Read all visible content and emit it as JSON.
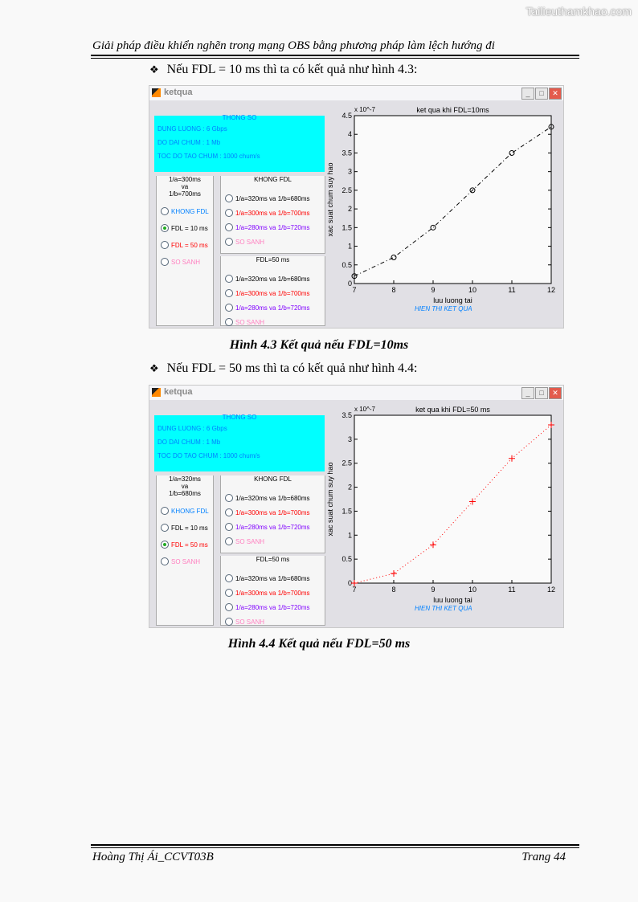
{
  "watermark": "Tailieuthamkhao.com",
  "header": "Giải pháp điều khiển nghẽn trong mạng OBS bằng phương pháp làm lệch hướng đi",
  "bullet_symbol": "❖",
  "bullets": [
    "Nếu FDL = 10 ms thì ta có kết quả như hình 4.3:",
    "Nếu FDL = 50 ms thì ta có kết quả như hình 4.4:"
  ],
  "captions": [
    "Hình 4.3 Kết quả nếu FDL=10ms",
    "Hình 4.4 Kết quả nếu FDL=50 ms"
  ],
  "footer": {
    "left": "Hoàng Thị Ái_CCVT03B",
    "right": "Trang 44"
  },
  "colors": {
    "cyan": "#00ffff",
    "blue": "#0080ff",
    "red": "#ff0000",
    "purple": "#8000ff",
    "pink": "#ff80c0"
  },
  "figures": [
    {
      "window_title": "ketqua",
      "params": {
        "title": "THONG SO",
        "lines": [
          "DUNG LUONG : 6 Gbps",
          "DO DAI CHUM : 1 Mb",
          "TOC DO TAO CHUM : 1000 chum/s"
        ]
      },
      "left_group": {
        "title": [
          "1/a=300ms",
          "va",
          "1/b=700ms"
        ],
        "options": [
          {
            "label": "KHONG FDL",
            "color": "#0080ff",
            "selected": false
          },
          {
            "label": "FDL = 10 ms",
            "color": "#000000",
            "selected": true
          },
          {
            "label": "FDL = 50 ms",
            "color": "#ff0000",
            "selected": false
          },
          {
            "label": "SO SANH",
            "color": "#ff80c0",
            "selected": false
          }
        ]
      },
      "group_khong_fdl": {
        "title": "KHONG FDL",
        "options": [
          {
            "label": "1/a=320ms va 1/b=680ms",
            "color": "#000000"
          },
          {
            "label": "1/a=300ms va 1/b=700ms",
            "color": "#ff0000"
          },
          {
            "label": "1/a=280ms va 1/b=720ms",
            "color": "#8000ff"
          },
          {
            "label": "SO SANH",
            "color": "#ff80c0"
          }
        ]
      },
      "group_fdl50": {
        "title": "FDL=50 ms",
        "options": [
          {
            "label": "1/a=320ms va 1/b=680ms",
            "color": "#000000"
          },
          {
            "label": "1/a=300ms va 1/b=700ms",
            "color": "#ff0000"
          },
          {
            "label": "1/a=280ms va 1/b=720ms",
            "color": "#8000ff"
          },
          {
            "label": "SO SANH",
            "color": "#ff80c0"
          }
        ]
      },
      "result_button": "HIEN THI KET QUA",
      "chart_data": {
        "type": "line",
        "title": "ket qua khi FDL=10ms",
        "xlabel": "luu luong tai",
        "ylabel": "xac suat chum suy hao",
        "y_multiplier": "x 10^-7",
        "xlim": [
          7,
          12
        ],
        "ylim": [
          0,
          4.5
        ],
        "xticks": [
          "7",
          "8",
          "9",
          "10",
          "11",
          "12"
        ],
        "yticks": [
          "0",
          "0.5",
          "1",
          "1.5",
          "2",
          "2.5",
          "3",
          "3.5",
          "4",
          "4.5"
        ],
        "x": [
          7,
          8,
          9,
          10,
          11,
          12
        ],
        "y": [
          0.2,
          0.7,
          1.5,
          2.5,
          3.5,
          4.2
        ],
        "color": "#000000",
        "marker": "circle",
        "line_style": "dash-dot",
        "grid": false
      }
    },
    {
      "window_title": "ketqua",
      "params": {
        "title": "THONG SO",
        "lines": [
          "DUNG LUONG : 6 Gbps",
          "DO DAI CHUM : 1 Mb",
          "TOC DO TAO CHUM : 1000 chum/s"
        ]
      },
      "left_group": {
        "title": [
          "1/a=320ms",
          "va",
          "1/b=680ms"
        ],
        "options": [
          {
            "label": "KHONG FDL",
            "color": "#0080ff",
            "selected": false
          },
          {
            "label": "FDL = 10 ms",
            "color": "#000000",
            "selected": false
          },
          {
            "label": "FDL = 50 ms",
            "color": "#ff0000",
            "selected": true
          },
          {
            "label": "SO SANH",
            "color": "#ff80c0",
            "selected": false
          }
        ]
      },
      "group_khong_fdl": {
        "title": "KHONG FDL",
        "options": [
          {
            "label": "1/a=320ms va 1/b=680ms",
            "color": "#000000"
          },
          {
            "label": "1/a=300ms va 1/b=700ms",
            "color": "#ff0000"
          },
          {
            "label": "1/a=280ms va 1/b=720ms",
            "color": "#8000ff"
          },
          {
            "label": "SO SANH",
            "color": "#ff80c0"
          }
        ]
      },
      "group_fdl50": {
        "title": "FDL=50 ms",
        "options": [
          {
            "label": "1/a=320ms va 1/b=680ms",
            "color": "#000000"
          },
          {
            "label": "1/a=300ms va 1/b=700ms",
            "color": "#ff0000"
          },
          {
            "label": "1/a=280ms va 1/b=720ms",
            "color": "#8000ff"
          },
          {
            "label": "SO SANH",
            "color": "#ff80c0"
          }
        ]
      },
      "result_button": "HIEN THI KET QUA",
      "chart_data": {
        "type": "line",
        "title": "ket qua khi FDL=50 ms",
        "xlabel": "luu luong tai",
        "ylabel": "xac suat chum suy hao",
        "y_multiplier": "x 10^-7",
        "xlim": [
          7,
          12
        ],
        "ylim": [
          0,
          3.5
        ],
        "xticks": [
          "7",
          "8",
          "9",
          "10",
          "11",
          "12"
        ],
        "yticks": [
          "0",
          "0.5",
          "1",
          "1.5",
          "2",
          "2.5",
          "3",
          "3.5"
        ],
        "x": [
          7,
          8,
          9,
          10,
          11,
          12
        ],
        "y": [
          0,
          0.2,
          0.8,
          1.7,
          2.6,
          3.3
        ],
        "color": "#ff0000",
        "marker": "plus",
        "line_style": "dotted",
        "grid": false
      }
    }
  ]
}
